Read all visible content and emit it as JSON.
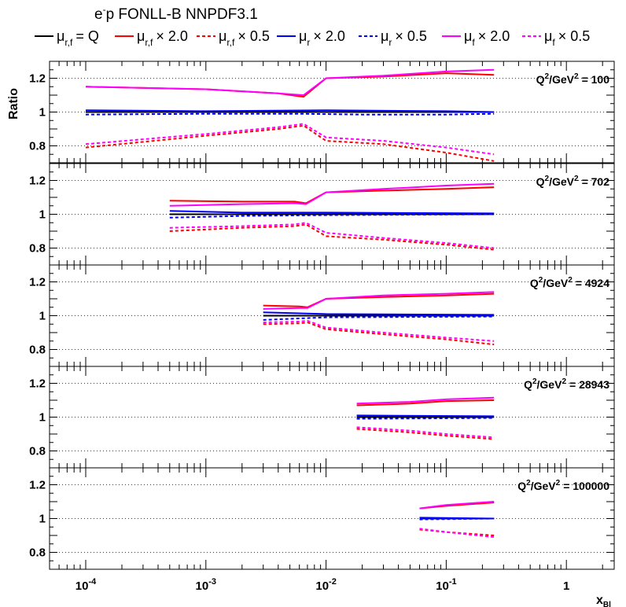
{
  "title": {
    "prefix": "e",
    "sup": "-",
    "rest": "p FONLL-B NNPDF3.1"
  },
  "legend": [
    {
      "mu": "μ",
      "sub": "r,f",
      "text": "= Q",
      "color": "#000000",
      "dash": "solid"
    },
    {
      "mu": "μ",
      "sub": "r,f",
      "text": "× 2.0",
      "color": "#ff0000",
      "dash": "solid"
    },
    {
      "mu": "μ",
      "sub": "r,f",
      "text": "× 0.5",
      "color": "#ff0000",
      "dash": "dotted"
    },
    {
      "mu": "μ",
      "sub": "r",
      "text": "× 2.0",
      "color": "#0000ff",
      "dash": "solid"
    },
    {
      "mu": "μ",
      "sub": "r",
      "text": "× 0.5",
      "color": "#0000ff",
      "dash": "dotted"
    },
    {
      "mu": "μ",
      "sub": "f",
      "text": "× 2.0",
      "color": "#ff00ff",
      "dash": "solid"
    },
    {
      "mu": "μ",
      "sub": "f",
      "text": "× 0.5",
      "color": "#ff00ff",
      "dash": "dotted"
    }
  ],
  "chart_data": {
    "type": "line",
    "ylabel": "Ratio",
    "xlabel": {
      "main": "x",
      "sub": "Bl"
    },
    "x_scale": "log",
    "xlim": [
      5e-05,
      2.5
    ],
    "ylim": [
      0.7,
      1.3
    ],
    "x_tick_labels": [
      {
        "x": 0.0001,
        "base": "10",
        "exp": "-4"
      },
      {
        "x": 0.001,
        "base": "10",
        "exp": "-3"
      },
      {
        "x": 0.01,
        "base": "10",
        "exp": "-2"
      },
      {
        "x": 0.1,
        "base": "10",
        "exp": "-1"
      },
      {
        "x": 1,
        "base": "1",
        "exp": ""
      }
    ],
    "y_ticks": [
      0.8,
      1.0,
      1.2
    ],
    "y_tick_labels": [
      "0.8",
      "1",
      "1.2"
    ],
    "grid_y": [
      0.8,
      1.0,
      1.2
    ],
    "panels": [
      {
        "label": "Q²/GeV² = 100",
        "q_prefix": "Q",
        "q_mid": "/GeV",
        "q_value": "= 100",
        "series": [
          {
            "key": "black",
            "color": "#000000",
            "dash": "solid",
            "x": [
              0.0001,
              0.25
            ],
            "y": [
              1.0,
              1.0
            ]
          },
          {
            "key": "rf2",
            "color": "#ff0000",
            "dash": "solid",
            "x": [
              0.0001,
              0.001,
              0.004,
              0.0065,
              0.01,
              0.03,
              0.1,
              0.25
            ],
            "y": [
              1.15,
              1.135,
              1.11,
              1.09,
              1.2,
              1.21,
              1.23,
              1.22
            ]
          },
          {
            "key": "rf05",
            "color": "#ff0000",
            "dash": "dotted",
            "x": [
              0.0001,
              0.001,
              0.004,
              0.0065,
              0.01,
              0.03,
              0.1,
              0.25
            ],
            "y": [
              0.79,
              0.86,
              0.9,
              0.92,
              0.83,
              0.81,
              0.76,
              0.71
            ]
          },
          {
            "key": "r2",
            "color": "#0000ff",
            "dash": "solid",
            "x": [
              0.0001,
              0.001,
              0.01,
              0.1,
              0.25
            ],
            "y": [
              1.01,
              1.005,
              1.01,
              1.005,
              1.0
            ]
          },
          {
            "key": "r05",
            "color": "#0000ff",
            "dash": "dotted",
            "x": [
              0.0001,
              0.001,
              0.006,
              0.02,
              0.1,
              0.25
            ],
            "y": [
              0.985,
              0.99,
              0.99,
              0.985,
              0.985,
              0.99
            ]
          },
          {
            "key": "f2",
            "color": "#ff00ff",
            "dash": "solid",
            "x": [
              0.0001,
              0.001,
              0.004,
              0.0065,
              0.01,
              0.03,
              0.1,
              0.25
            ],
            "y": [
              1.15,
              1.135,
              1.11,
              1.1,
              1.2,
              1.215,
              1.24,
              1.25
            ]
          },
          {
            "key": "f05",
            "color": "#ff00ff",
            "dash": "dotted",
            "x": [
              0.0001,
              0.001,
              0.004,
              0.0065,
              0.01,
              0.03,
              0.1,
              0.25
            ],
            "y": [
              0.81,
              0.87,
              0.91,
              0.93,
              0.85,
              0.83,
              0.79,
              0.75
            ]
          }
        ]
      },
      {
        "label": "Q²/GeV² = 702",
        "q_prefix": "Q",
        "q_mid": "/GeV",
        "q_value": "= 702",
        "series": [
          {
            "key": "black",
            "color": "#000000",
            "dash": "solid",
            "x": [
              0.0005,
              0.25
            ],
            "y": [
              1.0,
              1.0
            ]
          },
          {
            "key": "rf2",
            "color": "#ff0000",
            "dash": "solid",
            "x": [
              0.0005,
              0.002,
              0.0055,
              0.0068,
              0.01,
              0.03,
              0.1,
              0.25
            ],
            "y": [
              1.08,
              1.075,
              1.075,
              1.065,
              1.13,
              1.14,
              1.15,
              1.16
            ]
          },
          {
            "key": "rf05",
            "color": "#ff0000",
            "dash": "dotted",
            "x": [
              0.0005,
              0.002,
              0.0055,
              0.0068,
              0.01,
              0.03,
              0.1,
              0.25
            ],
            "y": [
              0.9,
              0.92,
              0.93,
              0.94,
              0.87,
              0.85,
              0.82,
              0.79
            ]
          },
          {
            "key": "r2",
            "color": "#0000ff",
            "dash": "solid",
            "x": [
              0.0005,
              0.002,
              0.01,
              0.25
            ],
            "y": [
              1.02,
              1.01,
              1.01,
              1.005
            ]
          },
          {
            "key": "r05",
            "color": "#0000ff",
            "dash": "dotted",
            "x": [
              0.0005,
              0.002,
              0.01,
              0.25
            ],
            "y": [
              0.98,
              0.99,
              0.995,
              1.0
            ]
          },
          {
            "key": "f2",
            "color": "#ff00ff",
            "dash": "solid",
            "x": [
              0.0005,
              0.002,
              0.0055,
              0.0068,
              0.01,
              0.03,
              0.1,
              0.25
            ],
            "y": [
              1.05,
              1.06,
              1.065,
              1.06,
              1.13,
              1.15,
              1.17,
              1.18
            ]
          },
          {
            "key": "f05",
            "color": "#ff00ff",
            "dash": "dotted",
            "x": [
              0.0005,
              0.002,
              0.0055,
              0.0068,
              0.01,
              0.03,
              0.1,
              0.25
            ],
            "y": [
              0.92,
              0.93,
              0.94,
              0.95,
              0.89,
              0.86,
              0.83,
              0.8
            ]
          }
        ]
      },
      {
        "label": "Q²/GeV² = 4924",
        "q_prefix": "Q",
        "q_mid": "/GeV",
        "q_value": "= 4924",
        "series": [
          {
            "key": "black",
            "color": "#000000",
            "dash": "solid",
            "x": [
              0.003,
              0.25
            ],
            "y": [
              1.0,
              1.0
            ]
          },
          {
            "key": "rf2",
            "color": "#ff0000",
            "dash": "solid",
            "x": [
              0.003,
              0.006,
              0.007,
              0.01,
              0.03,
              0.1,
              0.25
            ],
            "y": [
              1.06,
              1.055,
              1.05,
              1.1,
              1.11,
              1.12,
              1.13
            ]
          },
          {
            "key": "rf05",
            "color": "#ff0000",
            "dash": "dotted",
            "x": [
              0.003,
              0.006,
              0.007,
              0.01,
              0.03,
              0.1,
              0.25
            ],
            "y": [
              0.95,
              0.955,
              0.96,
              0.92,
              0.89,
              0.86,
              0.83
            ]
          },
          {
            "key": "r2",
            "color": "#0000ff",
            "dash": "solid",
            "x": [
              0.003,
              0.01,
              0.25
            ],
            "y": [
              1.02,
              1.01,
              1.005
            ]
          },
          {
            "key": "r05",
            "color": "#0000ff",
            "dash": "dotted",
            "x": [
              0.003,
              0.01,
              0.25
            ],
            "y": [
              0.975,
              0.99,
              0.995
            ]
          },
          {
            "key": "f2",
            "color": "#ff00ff",
            "dash": "solid",
            "x": [
              0.003,
              0.006,
              0.007,
              0.01,
              0.03,
              0.1,
              0.25
            ],
            "y": [
              1.04,
              1.045,
              1.045,
              1.1,
              1.12,
              1.13,
              1.14
            ]
          },
          {
            "key": "f05",
            "color": "#ff00ff",
            "dash": "dotted",
            "x": [
              0.003,
              0.006,
              0.007,
              0.01,
              0.03,
              0.1,
              0.25
            ],
            "y": [
              0.96,
              0.965,
              0.97,
              0.93,
              0.9,
              0.87,
              0.85
            ]
          }
        ]
      },
      {
        "label": "Q²/GeV² = 28943",
        "q_prefix": "Q",
        "q_mid": "/GeV",
        "q_value": "= 28943",
        "series": [
          {
            "key": "black",
            "color": "#000000",
            "dash": "solid",
            "x": [
              0.018,
              0.25
            ],
            "y": [
              1.0,
              1.0
            ]
          },
          {
            "key": "rf2",
            "color": "#ff0000",
            "dash": "solid",
            "x": [
              0.018,
              0.05,
              0.1,
              0.25
            ],
            "y": [
              1.07,
              1.08,
              1.095,
              1.1
            ]
          },
          {
            "key": "rf05",
            "color": "#ff0000",
            "dash": "dotted",
            "x": [
              0.018,
              0.05,
              0.1,
              0.25
            ],
            "y": [
              0.93,
              0.91,
              0.89,
              0.87
            ]
          },
          {
            "key": "r2",
            "color": "#0000ff",
            "dash": "solid",
            "x": [
              0.018,
              0.25
            ],
            "y": [
              1.01,
              1.005
            ]
          },
          {
            "key": "r05",
            "color": "#0000ff",
            "dash": "dotted",
            "x": [
              0.018,
              0.25
            ],
            "y": [
              0.99,
              0.995
            ]
          },
          {
            "key": "f2",
            "color": "#ff00ff",
            "dash": "solid",
            "x": [
              0.018,
              0.05,
              0.1,
              0.25
            ],
            "y": [
              1.08,
              1.09,
              1.105,
              1.115
            ]
          },
          {
            "key": "f05",
            "color": "#ff00ff",
            "dash": "dotted",
            "x": [
              0.018,
              0.05,
              0.1,
              0.25
            ],
            "y": [
              0.94,
              0.92,
              0.9,
              0.88
            ]
          }
        ]
      },
      {
        "label": "Q²/GeV² = 100000",
        "q_prefix": "Q",
        "q_mid": "/GeV",
        "q_value": "= 100000",
        "series": [
          {
            "key": "black",
            "color": "#000000",
            "dash": "solid",
            "x": [
              0.06,
              0.25
            ],
            "y": [
              1.0,
              1.0
            ]
          },
          {
            "key": "rf2",
            "color": "#ff0000",
            "dash": "solid",
            "x": [
              0.06,
              0.1,
              0.25
            ],
            "y": [
              1.06,
              1.075,
              1.095
            ]
          },
          {
            "key": "rf05",
            "color": "#ff0000",
            "dash": "dotted",
            "x": [
              0.06,
              0.1,
              0.25
            ],
            "y": [
              0.935,
              0.92,
              0.9
            ]
          },
          {
            "key": "r2",
            "color": "#0000ff",
            "dash": "solid",
            "x": [
              0.06,
              0.25
            ],
            "y": [
              1.005,
              1.0
            ]
          },
          {
            "key": "r05",
            "color": "#0000ff",
            "dash": "dotted",
            "x": [
              0.06,
              0.25
            ],
            "y": [
              0.995,
              1.0
            ]
          },
          {
            "key": "f2",
            "color": "#ff00ff",
            "dash": "solid",
            "x": [
              0.06,
              0.1,
              0.25
            ],
            "y": [
              1.06,
              1.08,
              1.1
            ]
          },
          {
            "key": "f05",
            "color": "#ff00ff",
            "dash": "dotted",
            "x": [
              0.06,
              0.1,
              0.25
            ],
            "y": [
              0.94,
              0.92,
              0.89
            ]
          }
        ]
      }
    ]
  }
}
